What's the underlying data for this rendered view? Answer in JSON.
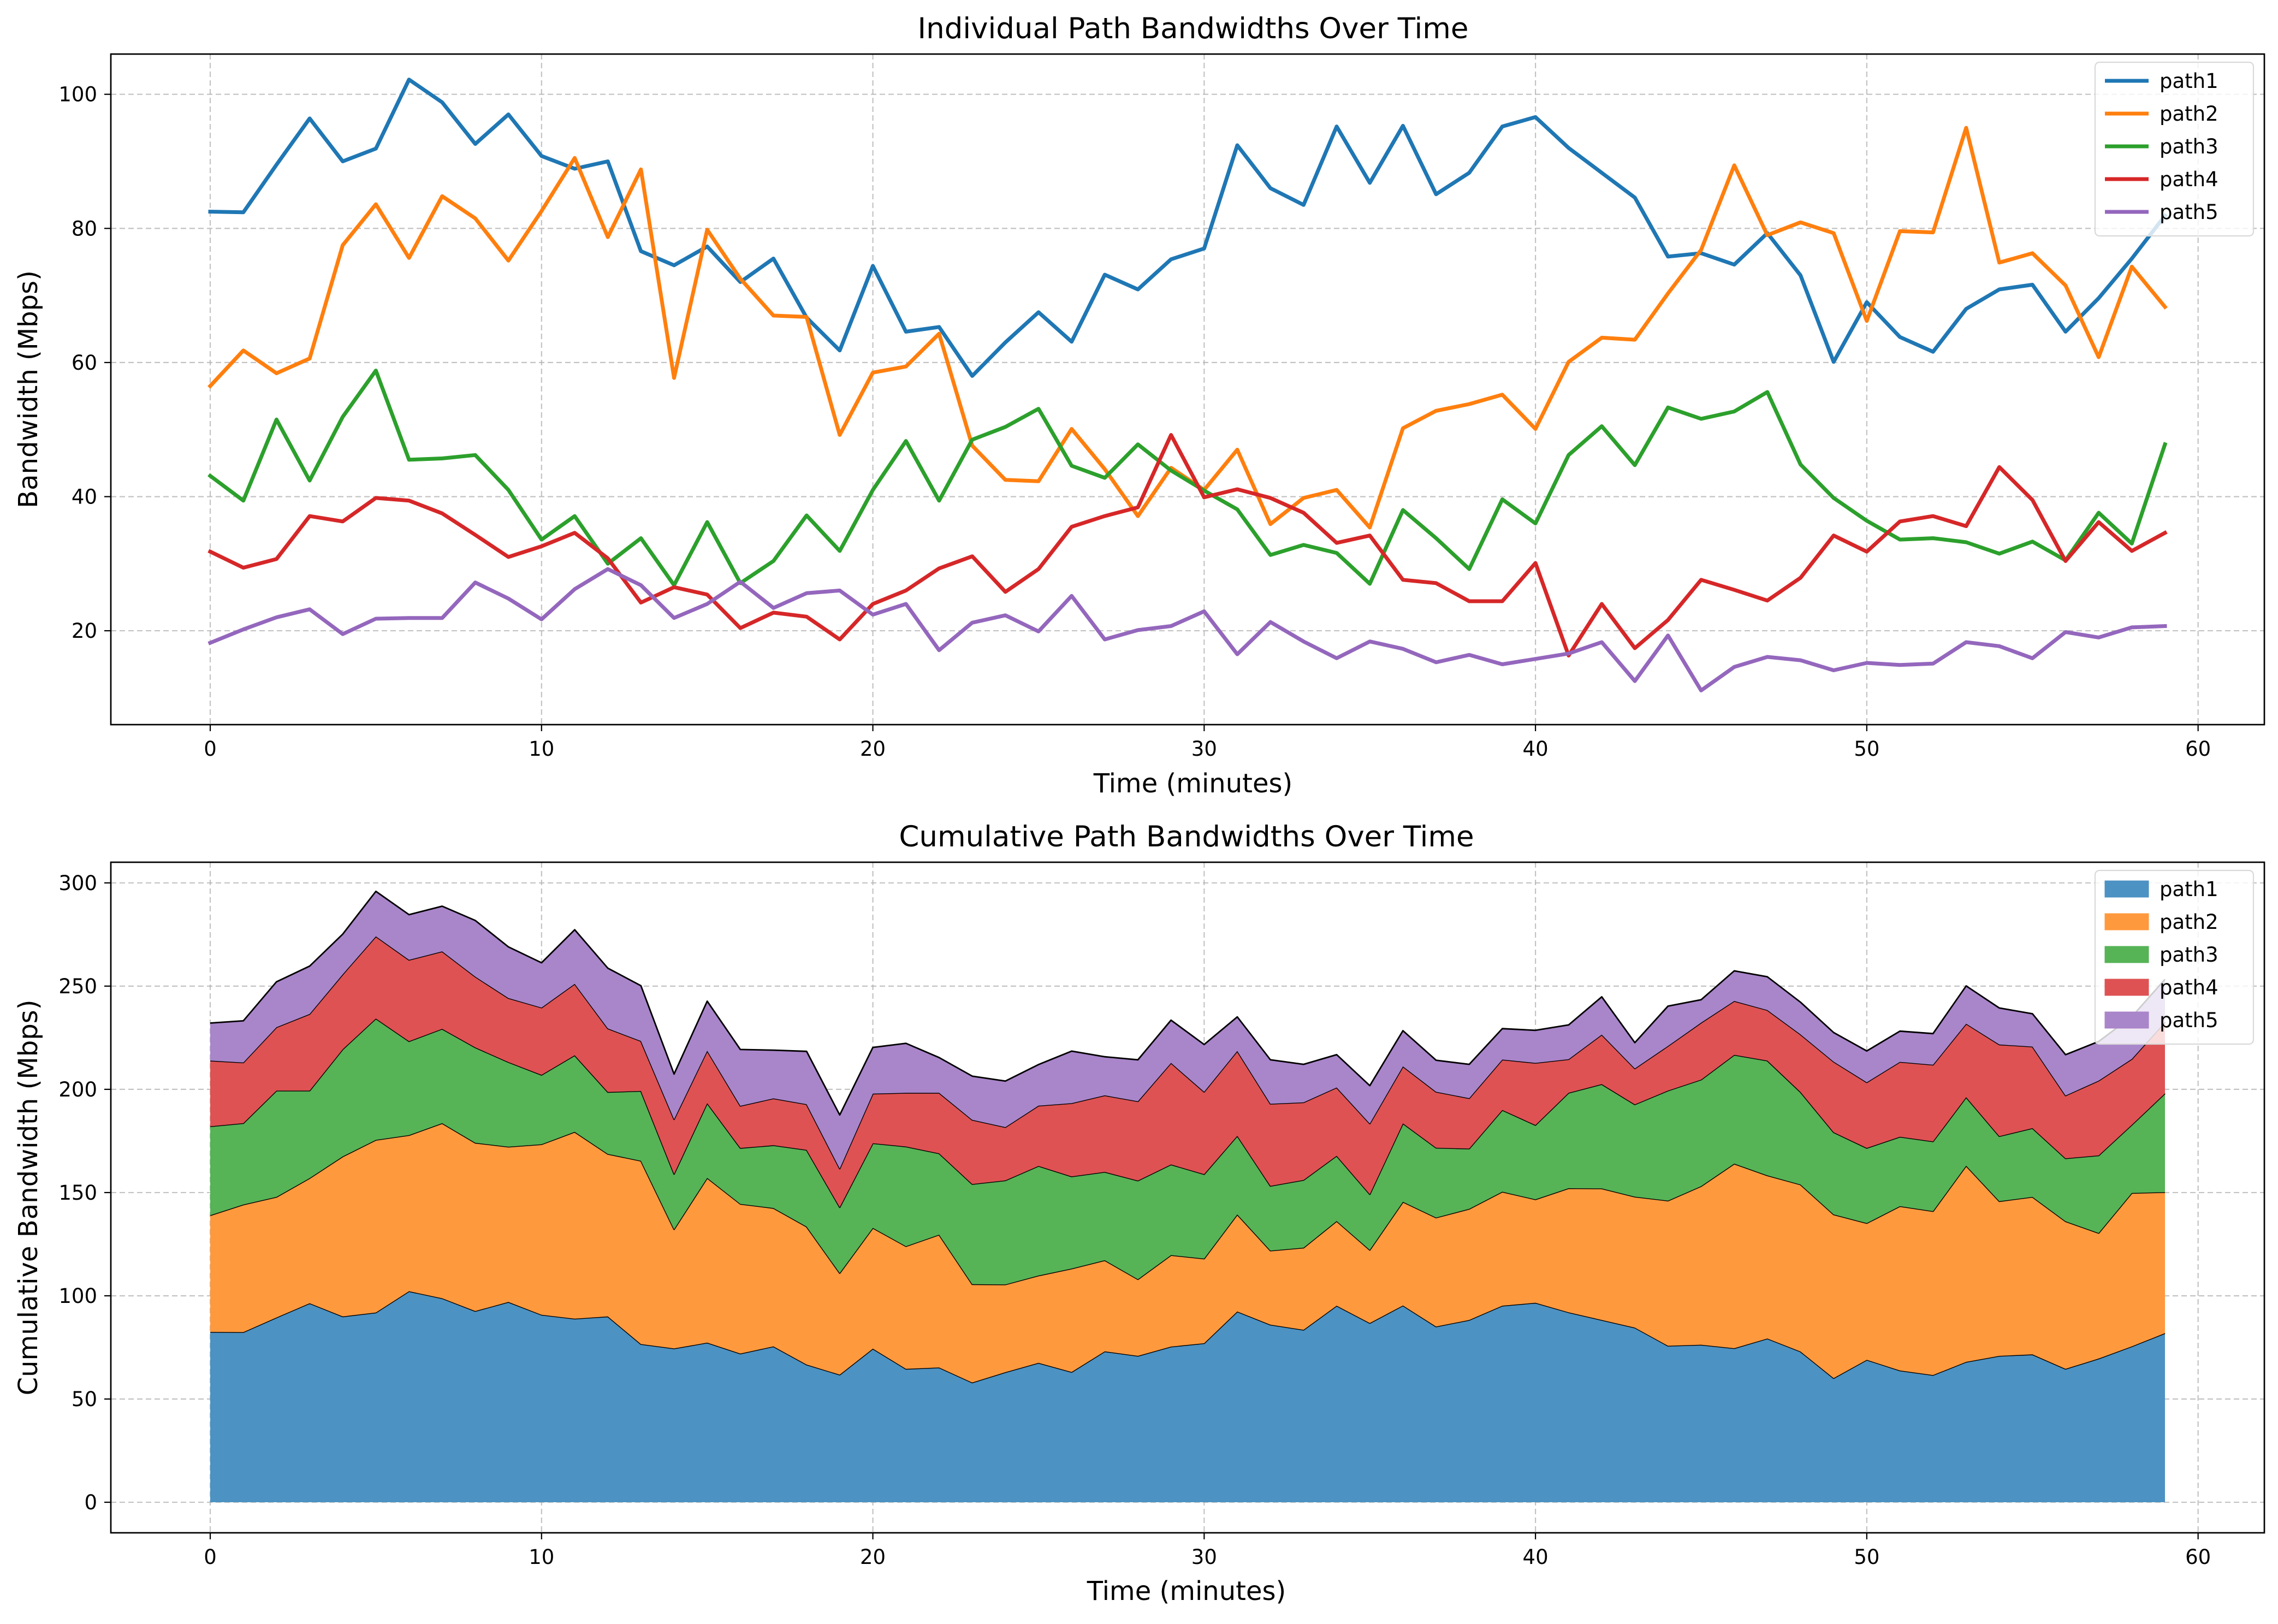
{
  "chart_data": [
    {
      "type": "line",
      "title": "Individual Path Bandwidths Over Time",
      "xlabel": "Time (minutes)",
      "ylabel": "Bandwidth (Mbps)",
      "xlim": [
        -3,
        62
      ],
      "ylim": [
        6,
        106
      ],
      "xticks": [
        0,
        10,
        20,
        30,
        40,
        50,
        60
      ],
      "yticks": [
        20,
        40,
        60,
        80,
        100
      ],
      "grid": true,
      "legend_position": "top-right",
      "x": [
        0,
        1,
        2,
        3,
        4,
        5,
        6,
        7,
        8,
        9,
        10,
        11,
        12,
        13,
        14,
        15,
        16,
        17,
        18,
        19,
        20,
        21,
        22,
        23,
        24,
        25,
        26,
        27,
        28,
        29,
        30,
        31,
        32,
        33,
        34,
        35,
        36,
        37,
        38,
        39,
        40,
        41,
        42,
        43,
        44,
        45,
        46,
        47,
        48,
        49,
        50,
        51,
        52,
        53,
        54,
        55,
        56,
        57,
        58,
        59
      ],
      "series": [
        {
          "name": "path1",
          "color": "#1f77b4",
          "values": [
            82.5,
            82.4,
            89.5,
            96.4,
            90,
            91.9,
            102.2,
            98.8,
            92.6,
            97,
            90.8,
            88.9,
            90,
            76.6,
            74.5,
            77.3,
            72,
            75.5,
            66.7,
            61.8,
            74.4,
            64.6,
            65.3,
            58,
            63,
            67.5,
            63.1,
            73.1,
            70.9,
            75.4,
            77,
            92.4,
            86,
            83.5,
            95.2,
            86.8,
            95.3,
            85.1,
            88.3,
            95.2,
            96.6,
            92,
            88.3,
            84.6,
            75.8,
            76.3,
            74.6,
            79.3,
            73,
            60.1,
            69,
            63.8,
            61.6,
            68,
            70.9,
            71.6,
            64.6,
            69.6,
            75.5,
            81.9
          ]
        },
        {
          "name": "path2",
          "color": "#ff7f0e",
          "values": [
            56.5,
            61.8,
            58.4,
            60.6,
            77.5,
            83.6,
            75.6,
            84.8,
            81.5,
            75.2,
            82.6,
            90.5,
            78.7,
            88.8,
            57.7,
            79.8,
            72.5,
            67,
            66.8,
            49.2,
            58.5,
            59.4,
            64.3,
            47.6,
            42.5,
            42.3,
            50.1,
            44.1,
            37.1,
            44.3,
            41,
            47,
            35.9,
            39.8,
            41,
            35.4,
            50.2,
            52.8,
            53.8,
            55.2,
            50.1,
            60.1,
            63.7,
            63.4,
            70.3,
            76.8,
            89.4,
            79,
            80.9,
            79.3,
            66.2,
            79.6,
            79.4,
            95,
            74.9,
            76.3,
            71.5,
            60.8,
            74.3,
            68.3
          ]
        },
        {
          "name": "path3",
          "color": "#2ca02c",
          "values": [
            43.1,
            39.4,
            51.5,
            42.4,
            51.9,
            58.8,
            45.5,
            45.7,
            46.2,
            41,
            33.6,
            37.1,
            30,
            33.8,
            26.8,
            36.2,
            27.1,
            30.4,
            37.2,
            31.9,
            41,
            48.3,
            39.4,
            48.5,
            50.4,
            53.1,
            44.6,
            42.8,
            47.8,
            43.9,
            40.9,
            38.1,
            31.3,
            32.8,
            31.6,
            27,
            38,
            33.8,
            29.2,
            39.6,
            36,
            46.2,
            50.5,
            44.7,
            53.3,
            51.6,
            52.7,
            55.6,
            44.8,
            39.8,
            36.4,
            33.6,
            33.8,
            33.2,
            31.5,
            33.3,
            30.5,
            37.6,
            33,
            47.8
          ]
        },
        {
          "name": "path4",
          "color": "#d62728",
          "values": [
            31.8,
            29.4,
            30.7,
            37.1,
            36.3,
            39.8,
            39.4,
            37.5,
            34.3,
            31,
            32.6,
            34.6,
            30.8,
            24.2,
            26.5,
            25.4,
            20.4,
            22.7,
            22.1,
            18.7,
            24,
            26,
            29.3,
            31.1,
            25.8,
            29.2,
            35.5,
            37.1,
            38.4,
            49.2,
            39.9,
            41.1,
            39.8,
            37.6,
            33.1,
            34.2,
            27.6,
            27.1,
            24.4,
            24.4,
            30.1,
            16.3,
            24,
            17.4,
            21.6,
            27.6,
            26.1,
            24.5,
            27.9,
            34.2,
            31.8,
            36.3,
            37.1,
            35.6,
            44.4,
            39.5,
            30.4,
            36.2,
            31.9,
            34.6
          ]
        },
        {
          "name": "path5",
          "color": "#9467bd",
          "values": [
            18.2,
            20.2,
            22,
            23.2,
            19.5,
            21.8,
            21.9,
            21.9,
            27.2,
            24.8,
            21.7,
            26.2,
            29.2,
            26.8,
            21.9,
            24,
            27.3,
            23.4,
            25.6,
            26,
            22.4,
            24,
            17.1,
            21.2,
            22.3,
            19.9,
            25.2,
            18.7,
            20.1,
            20.7,
            22.9,
            16.5,
            21.3,
            18.4,
            15.9,
            18.4,
            17.3,
            15.3,
            16.4,
            15,
            15.8,
            16.6,
            18.3,
            12.5,
            19.3,
            11.1,
            14.6,
            16.1,
            15.6,
            14.1,
            15.2,
            14.9,
            15.1,
            18.3,
            17.7,
            15.9,
            19.8,
            19,
            20.5,
            20.7
          ]
        }
      ]
    },
    {
      "type": "area",
      "stacked": true,
      "title": "Cumulative Path Bandwidths Over Time",
      "xlabel": "Time (minutes)",
      "ylabel": "Cumulative Bandwidth (Mbps)",
      "xlim": [
        -3,
        62
      ],
      "ylim": [
        -14.8,
        310
      ],
      "xticks": [
        0,
        10,
        20,
        30,
        40,
        50,
        60
      ],
      "yticks": [
        0,
        50,
        100,
        150,
        200,
        250,
        300
      ],
      "grid": true,
      "legend_position": "top-right",
      "series_source": "same as chart 1"
    }
  ]
}
